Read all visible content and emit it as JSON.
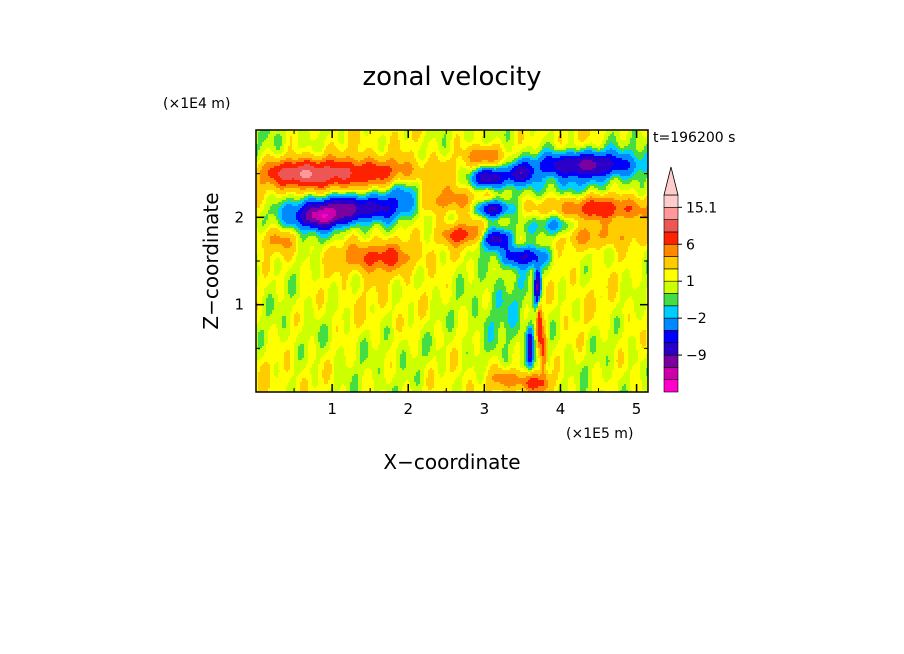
{
  "chart_data": {
    "type": "heatmap",
    "title": "zonal velocity",
    "time_label": "t=196200 s",
    "xlabel": "X−coordinate",
    "ylabel": "Z−coordinate",
    "x_unit": "(×1E5 m)",
    "y_unit": "(×1E4 m)",
    "xlim": [
      0,
      5.15
    ],
    "ylim": [
      0,
      3.0
    ],
    "x_ticks": [
      1,
      2,
      3,
      4,
      5
    ],
    "y_ticks": [
      1,
      2
    ],
    "x_tick_labels": [
      "1",
      "2",
      "3",
      "4",
      "5"
    ],
    "y_tick_labels": [
      "1",
      "2"
    ],
    "colorbar": {
      "levels": [
        -15,
        -12,
        -9,
        -6,
        -4,
        -2,
        -1,
        0,
        1,
        2,
        4,
        6,
        9,
        12,
        15.1
      ],
      "colors": [
        "#ff00cc",
        "#cc00aa",
        "#7a00a0",
        "#2a00c8",
        "#0000ff",
        "#0088ff",
        "#00ccff",
        "#44dd44",
        "#ccff00",
        "#ffff00",
        "#ffcc00",
        "#ff8800",
        "#ff2200",
        "#ee5555",
        "#ff9999",
        "#ffcccc"
      ],
      "labeled_values": [
        15.1,
        6,
        1,
        -2,
        -9
      ],
      "labeled_text": [
        "15.1",
        "6",
        "1",
        "−2",
        "−9"
      ]
    },
    "field_features": [
      {
        "x": 1.2,
        "z": 2.5,
        "sx": 0.7,
        "sz": 0.12,
        "v": 8
      },
      {
        "x": 0.55,
        "z": 2.5,
        "sx": 0.25,
        "sz": 0.1,
        "v": 6
      },
      {
        "x": 1.2,
        "z": 2.1,
        "sx": 0.45,
        "sz": 0.1,
        "v": -10
      },
      {
        "x": 0.85,
        "z": 2.0,
        "sx": 0.2,
        "sz": 0.08,
        "v": -9
      },
      {
        "x": 0.6,
        "z": 1.9,
        "sx": 0.35,
        "sz": 0.15,
        "v": -3
      },
      {
        "x": 1.9,
        "z": 2.3,
        "sx": 0.25,
        "sz": 0.15,
        "v": -4
      },
      {
        "x": 1.6,
        "z": 1.55,
        "sx": 0.35,
        "sz": 0.12,
        "v": 6
      },
      {
        "x": 0.3,
        "z": 1.75,
        "sx": 0.2,
        "sz": 0.1,
        "v": 4
      },
      {
        "x": 2.5,
        "z": 2.2,
        "sx": 0.3,
        "sz": 0.1,
        "v": 4
      },
      {
        "x": 2.7,
        "z": 1.8,
        "sx": 0.2,
        "sz": 0.08,
        "v": 6
      },
      {
        "x": 3.0,
        "z": 2.7,
        "sx": 0.15,
        "sz": 0.08,
        "v": 6
      },
      {
        "x": 3.05,
        "z": 2.45,
        "sx": 0.15,
        "sz": 0.08,
        "v": -10
      },
      {
        "x": 3.1,
        "z": 2.1,
        "sx": 0.15,
        "sz": 0.07,
        "v": -9
      },
      {
        "x": 3.15,
        "z": 1.75,
        "sx": 0.15,
        "sz": 0.08,
        "v": -8
      },
      {
        "x": 3.5,
        "z": 1.55,
        "sx": 0.2,
        "sz": 0.08,
        "v": -7
      },
      {
        "x": 3.45,
        "z": 2.5,
        "sx": 0.12,
        "sz": 0.08,
        "v": -8
      },
      {
        "x": 4.3,
        "z": 2.6,
        "sx": 0.45,
        "sz": 0.1,
        "v": -11
      },
      {
        "x": 4.0,
        "z": 2.35,
        "sx": 0.5,
        "sz": 0.1,
        "v": -2
      },
      {
        "x": 4.5,
        "z": 2.1,
        "sx": 0.45,
        "sz": 0.1,
        "v": 7
      },
      {
        "x": 3.9,
        "z": 1.9,
        "sx": 0.3,
        "sz": 0.1,
        "v": -4
      },
      {
        "x": 4.4,
        "z": 1.8,
        "sx": 0.4,
        "sz": 0.1,
        "v": 4
      },
      {
        "x": 3.35,
        "z": 0.85,
        "sx": 0.3,
        "sz": 0.55,
        "v": -1.5
      },
      {
        "x": 3.7,
        "z": 1.2,
        "sx": 0.03,
        "sz": 0.15,
        "v": -11
      },
      {
        "x": 3.72,
        "z": 0.8,
        "sx": 0.025,
        "sz": 0.2,
        "v": 8
      },
      {
        "x": 3.6,
        "z": 0.5,
        "sx": 0.03,
        "sz": 0.15,
        "v": -8
      },
      {
        "x": 3.78,
        "z": 0.45,
        "sx": 0.03,
        "sz": 0.2,
        "v": 6
      },
      {
        "x": 3.65,
        "z": 0.1,
        "sx": 0.15,
        "sz": 0.08,
        "v": 6
      },
      {
        "x": 3.3,
        "z": 0.15,
        "sx": 0.15,
        "sz": 0.08,
        "v": 4
      },
      {
        "x": 1.9,
        "z": 0.5,
        "sx": 0.45,
        "sz": 0.2,
        "v": -0.6
      },
      {
        "x": 0.8,
        "z": 0.6,
        "sx": 0.3,
        "sz": 0.15,
        "v": -0.5
      },
      {
        "x": 4.6,
        "z": 0.6,
        "sx": 0.25,
        "sz": 0.2,
        "v": -0.5
      },
      {
        "x": 0.2,
        "z": 2.8,
        "sx": 0.25,
        "sz": 0.15,
        "v": -0.5
      },
      {
        "x": 4.9,
        "z": 2.8,
        "sx": 0.2,
        "sz": 0.15,
        "v": -1.5
      }
    ]
  }
}
